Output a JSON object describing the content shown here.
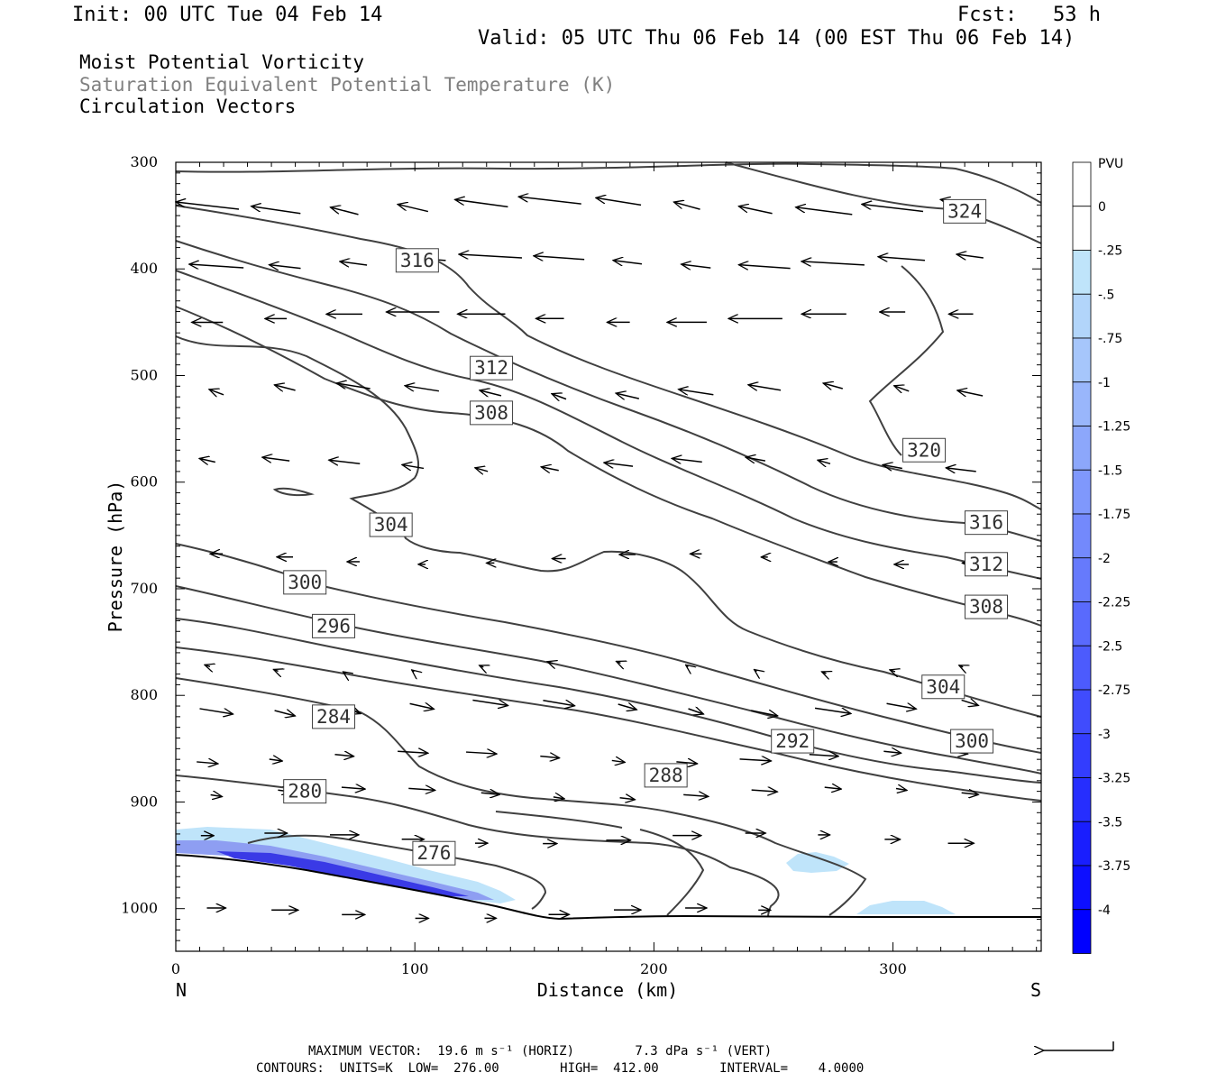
{
  "header": {
    "init": "Init: 00 UTC Tue 04 Feb 14",
    "fcst": "Fcst:   53 h",
    "valid": "Valid: 05 UTC Thu 06 Feb 14 (00 EST Thu 06 Feb 14)",
    "line1": "Moist Potential Vorticity",
    "line2": "Saturation Equivalent Potential Temperature (K)",
    "line3": "Circulation Vectors"
  },
  "colors": {
    "contour": "#404040",
    "pv_light": "#bfe4fa",
    "pv_dark": "#3838e8"
  },
  "chart_data": {
    "type": "contour",
    "xlabel": "Distance (km)",
    "ylabel": "Pressure (hPa)",
    "xlim": [
      0,
      362
    ],
    "ylim": [
      1040,
      300
    ],
    "x_ticks": [
      "0",
      "100",
      "200",
      "300"
    ],
    "x_tick_values": [
      0,
      100,
      200,
      300
    ],
    "y_ticks": [
      "300",
      "400",
      "500",
      "600",
      "700",
      "800",
      "900",
      "1000"
    ],
    "y_tick_values": [
      300,
      400,
      500,
      600,
      700,
      800,
      900,
      1000
    ],
    "left_end_label": "N",
    "right_end_label": "S",
    "contour_labels": [
      {
        "text": "324",
        "x": 330,
        "y": 346
      },
      {
        "text": "316",
        "x": 101,
        "y": 392
      },
      {
        "text": "312",
        "x": 132,
        "y": 493
      },
      {
        "text": "308",
        "x": 132,
        "y": 535
      },
      {
        "text": "320",
        "x": 313,
        "y": 570
      },
      {
        "text": "304",
        "x": 90,
        "y": 640
      },
      {
        "text": "316",
        "x": 339,
        "y": 638
      },
      {
        "text": "312",
        "x": 339,
        "y": 677
      },
      {
        "text": "300",
        "x": 54,
        "y": 694
      },
      {
        "text": "308",
        "x": 339,
        "y": 717
      },
      {
        "text": "296",
        "x": 66,
        "y": 735
      },
      {
        "text": "304",
        "x": 321,
        "y": 792
      },
      {
        "text": "284",
        "x": 66,
        "y": 820
      },
      {
        "text": "292",
        "x": 258,
        "y": 843
      },
      {
        "text": "300",
        "x": 333,
        "y": 843
      },
      {
        "text": "288",
        "x": 205,
        "y": 875
      },
      {
        "text": "280",
        "x": 54,
        "y": 890
      },
      {
        "text": "276",
        "x": 108,
        "y": 948
      }
    ],
    "colorbar": {
      "title": "PVU",
      "labels": [
        "0",
        "-.25",
        "-.5",
        "-.75",
        "-1",
        "-1.25",
        "-1.5",
        "-1.75",
        "-2",
        "-2.25",
        "-2.5",
        "-2.75",
        "-3",
        "-3.25",
        "-3.5",
        "-3.75",
        "-4"
      ]
    }
  },
  "footer": {
    "line1": "MAXIMUM VECTOR:  19.6 m s⁻¹ (HORIZ)        7.3 dPa s⁻¹ (VERT)",
    "line2": "CONTOURS:  UNITS=K  LOW=  276.00        HIGH=  412.00        INTERVAL=    4.0000"
  }
}
